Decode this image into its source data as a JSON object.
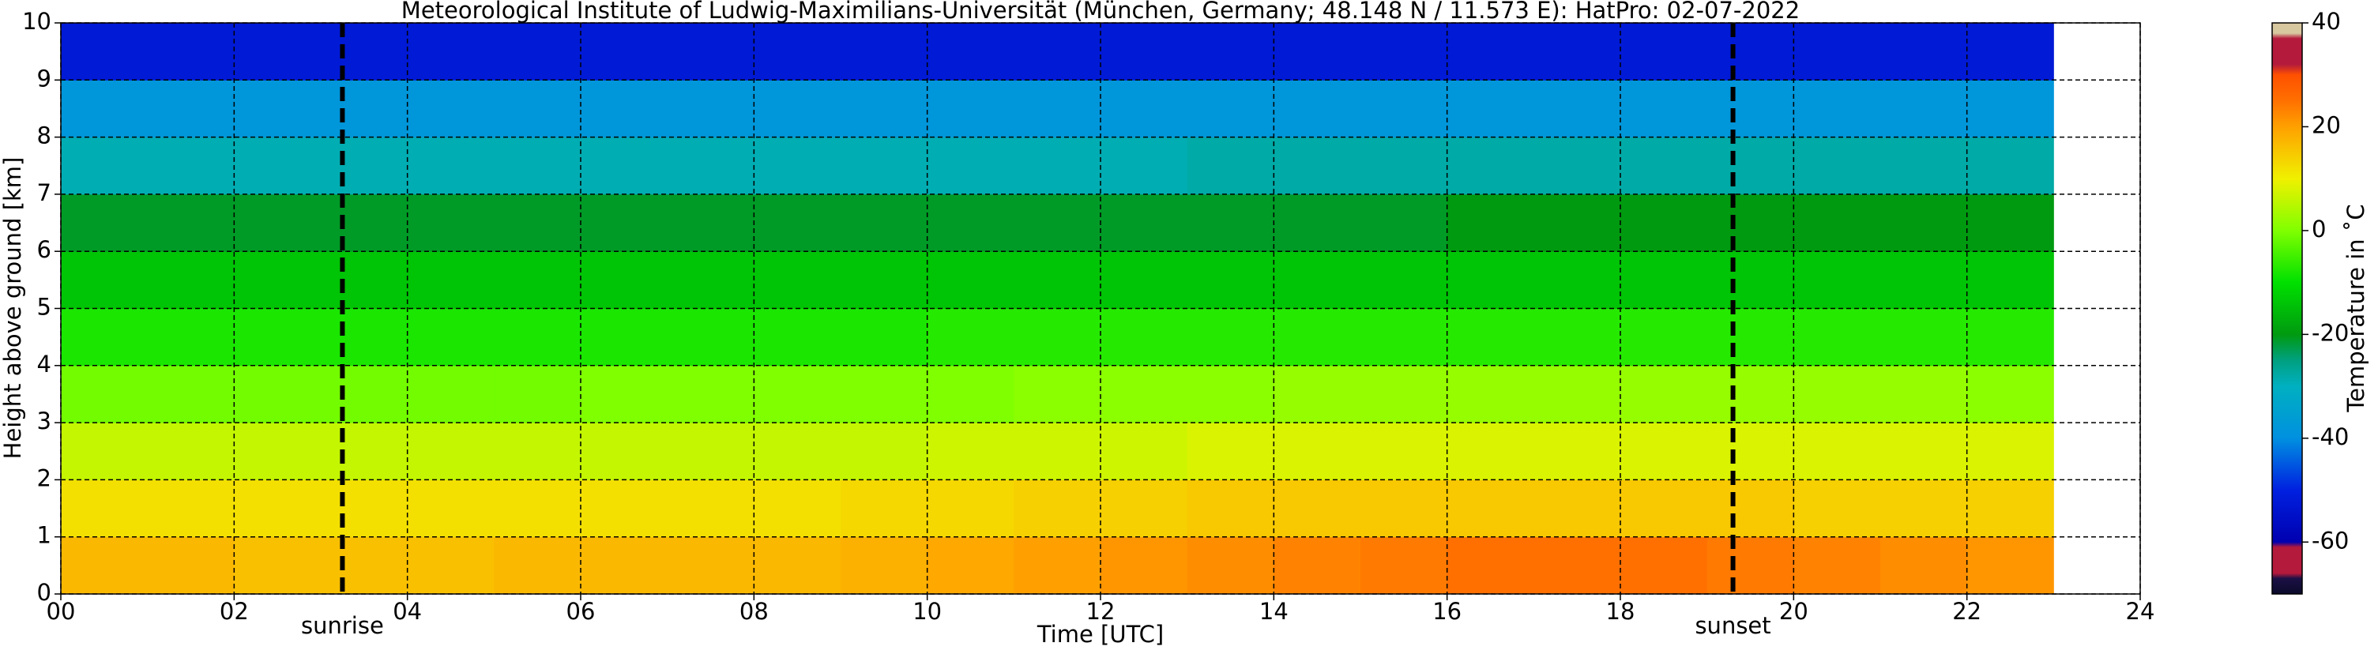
{
  "chart_data": {
    "type": "heatmap",
    "title": "Meteorological Institute of Ludwig-Maximilians-Universität (München, Germany; 48.148 N / 11.573 E):    HatPro: 02-07-2022",
    "x_label": "Time [UTC]",
    "y_label": "Height above ground [km]",
    "colorbar_label": "Temperature in ˚C",
    "x_edges": [
      0,
      1,
      2,
      3,
      4,
      5,
      6,
      7,
      8,
      9,
      10,
      11,
      12,
      13,
      14,
      15,
      16,
      17,
      18,
      19,
      20,
      21,
      22,
      23
    ],
    "y_edges": [
      0,
      1,
      2,
      3,
      4,
      5,
      6,
      7,
      8,
      9,
      10
    ],
    "z": [
      [
        17,
        17,
        16,
        16,
        16,
        17,
        17,
        17,
        17,
        18,
        19,
        20,
        21,
        22,
        23,
        24,
        25,
        25,
        25,
        24,
        23,
        22,
        21
      ],
      [
        12,
        12,
        12,
        12,
        12,
        12,
        12,
        12,
        12,
        13,
        13,
        14,
        14,
        15,
        15,
        15,
        15,
        15,
        15,
        15,
        14,
        14,
        14
      ],
      [
        6,
        6,
        6,
        6,
        6,
        6,
        6,
        6,
        6,
        6,
        7,
        7,
        7,
        8,
        8,
        8,
        8,
        8,
        8,
        8,
        8,
        8,
        8
      ],
      [
        -1,
        -1,
        -1,
        -1,
        -1,
        -1,
        0,
        0,
        0,
        0,
        0,
        1,
        1,
        1,
        2,
        2,
        2,
        2,
        2,
        2,
        2,
        2,
        1
      ],
      [
        -8,
        -8,
        -8,
        -8,
        -8,
        -8,
        -8,
        -8,
        -8,
        -8,
        -7,
        -7,
        -7,
        -7,
        -7,
        -7,
        -7,
        -7,
        -7,
        -7,
        -7,
        -7,
        -7
      ],
      [
        -14,
        -14,
        -14,
        -14,
        -14,
        -14,
        -14,
        -14,
        -14,
        -14,
        -14,
        -14,
        -14,
        -14,
        -14,
        -14,
        -14,
        -14,
        -14,
        -14,
        -14,
        -14,
        -14
      ],
      [
        -21,
        -21,
        -21,
        -21,
        -21,
        -21,
        -21,
        -21,
        -21,
        -21,
        -21,
        -21,
        -21,
        -21,
        -21,
        -21,
        -20,
        -20,
        -20,
        -20,
        -20,
        -20,
        -20
      ],
      [
        -29,
        -29,
        -29,
        -29,
        -29,
        -29,
        -29,
        -29,
        -29,
        -29,
        -29,
        -29,
        -29,
        -28,
        -28,
        -28,
        -28,
        -28,
        -28,
        -28,
        -28,
        -28,
        -28
      ],
      [
        -38,
        -38,
        -38,
        -38,
        -38,
        -38,
        -38,
        -38,
        -38,
        -38,
        -38,
        -38,
        -38,
        -38,
        -38,
        -38,
        -38,
        -38,
        -38,
        -38,
        -38,
        -38,
        -38
      ],
      [
        -52,
        -52,
        -52,
        -52,
        -52,
        -52,
        -52,
        -52,
        -52,
        -52,
        -52,
        -52,
        -52,
        -52,
        -52,
        -52,
        -52,
        -52,
        -52,
        -52,
        -52,
        -52,
        -52
      ]
    ],
    "xlim": [
      0,
      24
    ],
    "ylim": [
      0,
      10
    ],
    "xticks": [
      {
        "value": 0,
        "label": "00"
      },
      {
        "value": 2,
        "label": "02"
      },
      {
        "value": 4,
        "label": "04"
      },
      {
        "value": 6,
        "label": "06"
      },
      {
        "value": 8,
        "label": "08"
      },
      {
        "value": 10,
        "label": "10"
      },
      {
        "value": 12,
        "label": "12"
      },
      {
        "value": 14,
        "label": "14"
      },
      {
        "value": 16,
        "label": "16"
      },
      {
        "value": 18,
        "label": "18"
      },
      {
        "value": 20,
        "label": "20"
      },
      {
        "value": 22,
        "label": "22"
      },
      {
        "value": 24,
        "label": "24"
      }
    ],
    "yticks": [
      0,
      1,
      2,
      3,
      4,
      5,
      6,
      7,
      8,
      9,
      10
    ],
    "grid": true,
    "vlines": [
      {
        "x": 3.25,
        "label": "sunrise"
      },
      {
        "x": 19.3,
        "label": "sunset"
      }
    ],
    "clim": [
      -70,
      40
    ],
    "cticks": [
      -60,
      -40,
      -20,
      0,
      20,
      40
    ],
    "colormap": [
      [
        -70,
        "#0a0a2a"
      ],
      [
        -67,
        "#1c1045"
      ],
      [
        -66,
        "#b41a3c"
      ],
      [
        -61,
        "#b41a3c"
      ],
      [
        -60,
        "#0000b0"
      ],
      [
        -50,
        "#0020e0"
      ],
      [
        -40,
        "#0090e0"
      ],
      [
        -30,
        "#00b0c0"
      ],
      [
        -25,
        "#00a080"
      ],
      [
        -20,
        "#009a10"
      ],
      [
        -10,
        "#00e000"
      ],
      [
        0,
        "#80ff00"
      ],
      [
        10,
        "#f0f000"
      ],
      [
        20,
        "#ffa000"
      ],
      [
        25,
        "#ff7000"
      ],
      [
        30,
        "#ff5000"
      ],
      [
        32,
        "#b41a3c"
      ],
      [
        37,
        "#b41a3c"
      ],
      [
        38,
        "#d8c8a0"
      ],
      [
        40,
        "#d8c8a0"
      ]
    ]
  }
}
